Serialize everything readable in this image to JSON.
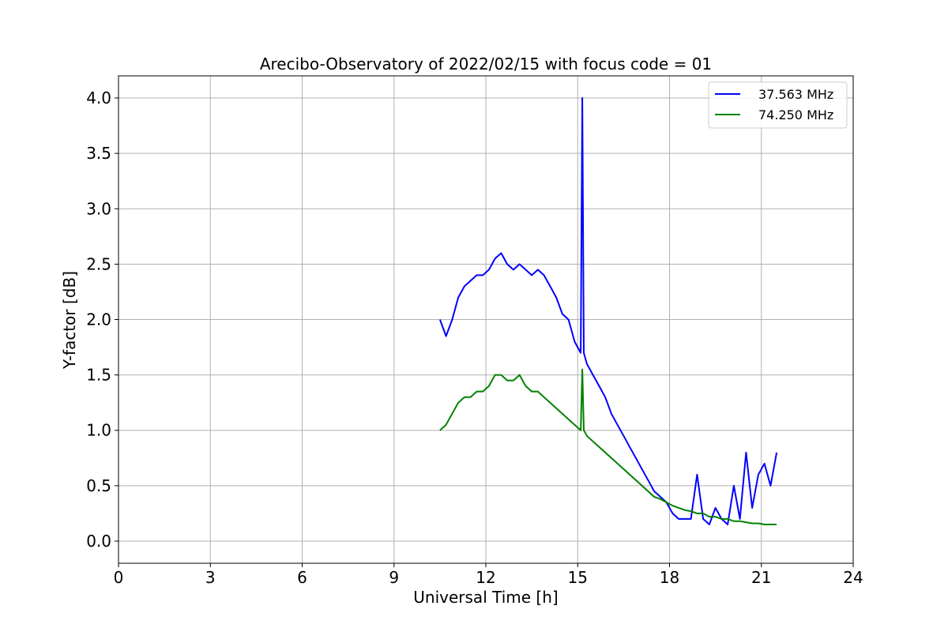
{
  "chart_data": {
    "type": "line",
    "title": "Arecibo-Observatory of 2022/02/15 with focus code = 01",
    "xlabel": "Universal Time [h]",
    "ylabel": "Y-factor [dB]",
    "xlim": [
      0,
      24
    ],
    "ylim": [
      -0.2,
      4.2
    ],
    "xticks": [
      0,
      3,
      6,
      9,
      12,
      15,
      18,
      21,
      24
    ],
    "xtick_labels": [
      "0",
      "3",
      "6",
      "9",
      "12",
      "15",
      "18",
      "21",
      "24"
    ],
    "yticks": [
      0.0,
      0.5,
      1.0,
      1.5,
      2.0,
      2.5,
      3.0,
      3.5,
      4.0
    ],
    "ytick_labels": [
      "0.0",
      "0.5",
      "1.0",
      "1.5",
      "2.0",
      "2.5",
      "3.0",
      "3.5",
      "4.0"
    ],
    "grid": true,
    "legend_position": "top-right",
    "series": [
      {
        "name": "37.563 MHz",
        "color": "#0000ff",
        "x": [
          10.5,
          10.7,
          10.9,
          11.1,
          11.3,
          11.5,
          11.7,
          11.9,
          12.1,
          12.3,
          12.5,
          12.7,
          12.9,
          13.1,
          13.3,
          13.5,
          13.7,
          13.9,
          14.1,
          14.3,
          14.5,
          14.7,
          14.9,
          15.1,
          15.15,
          15.2,
          15.3,
          15.5,
          15.7,
          15.9,
          16.1,
          16.3,
          16.5,
          16.7,
          16.9,
          17.1,
          17.3,
          17.5,
          17.7,
          17.9,
          18.1,
          18.3,
          18.5,
          18.7,
          18.9,
          19.1,
          19.3,
          19.5,
          19.7,
          19.9,
          20.1,
          20.3,
          20.5,
          20.7,
          20.9,
          21.1,
          21.3,
          21.5
        ],
        "y": [
          2.0,
          1.85,
          2.0,
          2.2,
          2.3,
          2.35,
          2.4,
          2.4,
          2.45,
          2.55,
          2.6,
          2.5,
          2.45,
          2.5,
          2.45,
          2.4,
          2.45,
          2.4,
          2.3,
          2.2,
          2.05,
          2.0,
          1.8,
          1.7,
          4.0,
          1.7,
          1.6,
          1.5,
          1.4,
          1.3,
          1.15,
          1.05,
          0.95,
          0.85,
          0.75,
          0.65,
          0.55,
          0.45,
          0.4,
          0.35,
          0.25,
          0.2,
          0.2,
          0.2,
          0.6,
          0.2,
          0.15,
          0.3,
          0.2,
          0.15,
          0.5,
          0.2,
          0.8,
          0.3,
          0.6,
          0.7,
          0.5,
          0.8
        ]
      },
      {
        "name": "74.250 MHz",
        "color": "#008000",
        "x": [
          10.5,
          10.7,
          10.9,
          11.1,
          11.3,
          11.5,
          11.7,
          11.9,
          12.1,
          12.3,
          12.5,
          12.7,
          12.9,
          13.1,
          13.3,
          13.5,
          13.7,
          13.9,
          14.1,
          14.3,
          14.5,
          14.7,
          14.9,
          15.1,
          15.15,
          15.2,
          15.3,
          15.5,
          15.7,
          15.9,
          16.1,
          16.3,
          16.5,
          16.7,
          16.9,
          17.1,
          17.3,
          17.5,
          17.7,
          17.9,
          18.1,
          18.3,
          18.5,
          18.7,
          18.9,
          19.1,
          19.3,
          19.5,
          19.7,
          19.9,
          20.1,
          20.3,
          20.5,
          20.7,
          20.9,
          21.1,
          21.3,
          21.5
        ],
        "y": [
          1.0,
          1.05,
          1.15,
          1.25,
          1.3,
          1.3,
          1.35,
          1.35,
          1.4,
          1.5,
          1.5,
          1.45,
          1.45,
          1.5,
          1.4,
          1.35,
          1.35,
          1.3,
          1.25,
          1.2,
          1.15,
          1.1,
          1.05,
          1.0,
          1.55,
          1.0,
          0.95,
          0.9,
          0.85,
          0.8,
          0.75,
          0.7,
          0.65,
          0.6,
          0.55,
          0.5,
          0.45,
          0.4,
          0.38,
          0.35,
          0.32,
          0.3,
          0.28,
          0.27,
          0.25,
          0.25,
          0.22,
          0.22,
          0.2,
          0.2,
          0.18,
          0.18,
          0.17,
          0.16,
          0.16,
          0.15,
          0.15,
          0.15
        ]
      }
    ]
  }
}
